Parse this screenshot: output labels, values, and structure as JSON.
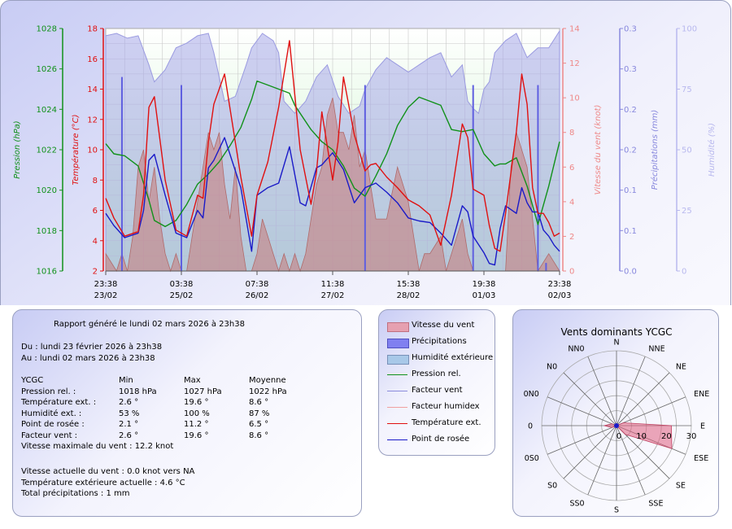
{
  "chart_data": {
    "type": "line",
    "x_ticks": [
      {
        "time": "23:38",
        "date": "23/02"
      },
      {
        "time": "03:38",
        "date": "25/02"
      },
      {
        "time": "07:38",
        "date": "26/02"
      },
      {
        "time": "11:38",
        "date": "27/02"
      },
      {
        "time": "15:38",
        "date": "28/02"
      },
      {
        "time": "19:38",
        "date": "01/03"
      },
      {
        "time": "23:38",
        "date": "02/03"
      }
    ],
    "x_range_hours": [
      0,
      168
    ],
    "axes": {
      "pressure": {
        "label": "Pression (hPa)",
        "min": 1016,
        "max": 1028,
        "ticks": [
          "1016",
          "1018",
          "1020",
          "1022",
          "1024",
          "1026",
          "1028"
        ],
        "color": "#11911a"
      },
      "temperature": {
        "label": "Température (°C)",
        "min": 2,
        "max": 18,
        "ticks": [
          "2",
          "4",
          "6",
          "8",
          "10",
          "12",
          "14",
          "16",
          "18"
        ],
        "color": "#e01010"
      },
      "wind": {
        "label": "Vitesse du vent (knot)",
        "min": 0,
        "max": 14,
        "ticks": [
          "0",
          "2",
          "4",
          "6",
          "8",
          "10",
          "12",
          "14"
        ],
        "color": "#ee8888"
      },
      "precip": {
        "label": "Précipitations (mm)",
        "min": 0,
        "max": 0.3,
        "ticks": [
          "0.0",
          "0.1",
          "0.1",
          "0.2",
          "0.2",
          "0.3",
          "0.3"
        ],
        "color": "#8888dd"
      },
      "humidity": {
        "label": "Humidité (%)",
        "min": 0,
        "max": 100,
        "ticks": [
          "0",
          "25",
          "50",
          "75",
          "100"
        ],
        "color": "#b8b8ee"
      }
    },
    "series": [
      {
        "name": "Température ext.",
        "axis": "temperature",
        "color": "#e01010",
        "x": [
          0,
          3,
          7,
          12,
          14,
          16,
          18,
          22,
          26,
          30,
          34,
          36,
          38,
          40,
          44,
          50,
          54,
          56,
          60,
          64,
          68,
          72,
          76,
          78,
          80,
          84,
          86,
          88,
          92,
          96,
          98,
          100,
          104,
          108,
          112,
          116,
          120,
          124,
          128,
          132,
          134,
          136,
          140,
          142,
          144,
          146,
          148,
          152,
          154,
          156,
          158,
          160,
          162,
          164,
          166,
          168
        ],
        "values": [
          6.8,
          5.5,
          4.3,
          4.6,
          7,
          12.8,
          13.5,
          8,
          4.7,
          4.3,
          7,
          6.8,
          10.5,
          13,
          15,
          8.2,
          4.3,
          7,
          9.2,
          12.8,
          17.2,
          10,
          6.4,
          8.5,
          12.5,
          8,
          10.5,
          14.8,
          11,
          8.6,
          9,
          9.1,
          8.2,
          7.5,
          6.7,
          6.3,
          5.7,
          3.7,
          7,
          11.7,
          10.8,
          7.4,
          7,
          5,
          3.5,
          3.3,
          5.8,
          11.2,
          15,
          13,
          7.5,
          5.8,
          5.8,
          5.2,
          4.3,
          4.5
        ]
      },
      {
        "name": "Point de rosée",
        "axis": "temperature",
        "color": "#1a1ac8",
        "x": [
          0,
          3,
          7,
          12,
          14,
          16,
          18,
          22,
          26,
          30,
          34,
          36,
          38,
          40,
          44,
          50,
          54,
          56,
          60,
          64,
          68,
          72,
          74,
          78,
          80,
          84,
          88,
          92,
          96,
          100,
          104,
          108,
          112,
          116,
          120,
          124,
          128,
          132,
          134,
          136,
          140,
          142,
          144,
          146,
          148,
          152,
          154,
          156,
          158,
          160,
          162,
          164,
          166,
          168
        ],
        "values": [
          5.8,
          5,
          4.2,
          4.5,
          6,
          9.3,
          9.7,
          7,
          4.5,
          4.2,
          6,
          5.5,
          8.8,
          9.3,
          10.8,
          7.5,
          3.3,
          7,
          7.5,
          7.8,
          10.2,
          6.5,
          6.3,
          8.8,
          9,
          9.8,
          8.7,
          6.5,
          7.5,
          7.8,
          7.2,
          6.5,
          5.5,
          5.3,
          5.2,
          4.5,
          3.7,
          6.3,
          5.9,
          4.3,
          3.2,
          2.5,
          2.4,
          4.8,
          6.3,
          5.8,
          7.5,
          6.5,
          5.9,
          5.9,
          4.7,
          4.3,
          3.7,
          3.3
        ]
      },
      {
        "name": "Pression rel.",
        "axis": "pressure",
        "color": "#11911a",
        "x": [
          0,
          3,
          7,
          12,
          16,
          18,
          22,
          26,
          30,
          34,
          38,
          42,
          46,
          50,
          54,
          56,
          60,
          64,
          68,
          70,
          72,
          76,
          80,
          84,
          88,
          92,
          96,
          100,
          104,
          108,
          112,
          116,
          120,
          124,
          128,
          132,
          136,
          140,
          144,
          146,
          148,
          152,
          156,
          160,
          164,
          168
        ],
        "values": [
          1022.3,
          1021.8,
          1021.7,
          1021.2,
          1019.5,
          1018.5,
          1018.2,
          1018.5,
          1019.3,
          1020.3,
          1020.8,
          1021.4,
          1022.2,
          1023.1,
          1024.5,
          1025.4,
          1025.2,
          1025,
          1024.8,
          1024.2,
          1023.8,
          1023,
          1022.4,
          1022,
          1021.2,
          1020.1,
          1019.7,
          1020.7,
          1021.8,
          1023.2,
          1024.1,
          1024.6,
          1024.4,
          1024.2,
          1023,
          1022.9,
          1023,
          1021.8,
          1021.2,
          1021.3,
          1021.3,
          1021.6,
          1020.2,
          1018.3,
          1020.2,
          1022.4
        ]
      },
      {
        "name": "Humidité extérieure",
        "axis": "humidity",
        "color": "#b8b8ee",
        "x": [
          0,
          4,
          8,
          12,
          16,
          18,
          22,
          26,
          30,
          34,
          38,
          40,
          44,
          48,
          52,
          54,
          58,
          62,
          64,
          66,
          70,
          74,
          78,
          82,
          86,
          90,
          94,
          96,
          100,
          104,
          108,
          112,
          116,
          120,
          124,
          128,
          132,
          134,
          136,
          138,
          140,
          142,
          144,
          148,
          152,
          156,
          160,
          164,
          168
        ],
        "values": [
          97,
          98,
          96,
          97,
          85,
          78,
          83,
          92,
          94,
          97,
          98,
          90,
          70,
          72,
          85,
          92,
          98,
          95,
          90,
          70,
          65,
          70,
          80,
          85,
          72,
          65,
          68,
          75,
          83,
          88,
          85,
          82,
          85,
          88,
          90,
          80,
          85,
          70,
          67,
          65,
          75,
          78,
          90,
          95,
          98,
          88,
          92,
          92,
          99
        ]
      },
      {
        "name": "Vitesse du vent",
        "axis": "wind",
        "color": "#c88080",
        "x": [
          0,
          4,
          6,
          8,
          10,
          12,
          14,
          16,
          18,
          20,
          22,
          24,
          26,
          28,
          30,
          34,
          36,
          38,
          40,
          42,
          44,
          46,
          48,
          50,
          52,
          54,
          56,
          58,
          60,
          62,
          64,
          66,
          68,
          70,
          72,
          74,
          76,
          78,
          80,
          82,
          84,
          86,
          88,
          90,
          92,
          94,
          96,
          98,
          100,
          104,
          108,
          112,
          114,
          116,
          118,
          120,
          124,
          126,
          128,
          130,
          132,
          134,
          136,
          140,
          144,
          148,
          150,
          152,
          154,
          156,
          158,
          160,
          164,
          168
        ],
        "values": [
          1,
          0,
          1,
          0,
          2,
          6,
          7,
          4,
          6,
          3,
          1,
          0,
          1,
          0,
          0,
          4,
          6,
          8,
          7,
          8,
          5,
          3,
          6,
          2,
          0,
          0,
          1,
          3,
          2,
          1,
          0,
          1,
          0,
          1,
          0,
          1,
          3,
          5,
          6,
          9,
          10,
          8,
          8,
          7,
          9,
          6,
          7,
          5,
          3,
          3,
          6,
          4,
          2,
          0,
          1,
          1,
          2,
          0,
          1,
          2,
          3,
          1,
          0,
          0,
          0,
          0,
          6,
          8,
          7,
          6,
          3,
          0,
          1,
          0
        ]
      },
      {
        "name": "Précipitations",
        "axis": "precip",
        "color": "#5f5fe0",
        "x": [
          6,
          28,
          96,
          136,
          160,
          163
        ],
        "values": [
          0.24,
          0.23,
          0.23,
          0.23,
          0.23,
          0.01
        ]
      }
    ]
  },
  "legend": {
    "items": [
      {
        "label": "Vitesse du vent",
        "color": "#e6a0b0",
        "kind": "box"
      },
      {
        "label": "Précipitations",
        "color": "#8080f0",
        "kind": "box"
      },
      {
        "label": "Humidité extérieure",
        "color": "#a8c8e8",
        "kind": "box"
      },
      {
        "label": "Pression rel.",
        "color": "#11911a",
        "kind": "line"
      },
      {
        "label": "Facteur vent",
        "color": "#8c8cdc",
        "kind": "line"
      },
      {
        "label": "Facteur humidex",
        "color": "#f0a0a0",
        "kind": "line"
      },
      {
        "label": "Température ext.",
        "color": "#e01010",
        "kind": "line"
      },
      {
        "label": "Point de rosée",
        "color": "#1a1ac8",
        "kind": "line"
      }
    ]
  },
  "report": {
    "generated": "Rapport généré le lundi 02 mars 2026 à 23h38",
    "from": "Du : lundi 23 février 2026 à 23h38",
    "to": "Au : lundi 02 mars 2026 à 23h38",
    "header": {
      "station": "YCGC",
      "min": "Min",
      "max": "Max",
      "avg": "Moyenne"
    },
    "rows": [
      {
        "label": "Pression rel. :",
        "min": "1018 hPa",
        "max": "1027 hPa",
        "avg": "1022 hPa"
      },
      {
        "label": "Température ext. :",
        "min": "2.6 °",
        "max": "19.6 °",
        "avg": "8.6 °"
      },
      {
        "label": "Humidité ext. :",
        "min": "53 %",
        "max": "100 %",
        "avg": "87 %"
      },
      {
        "label": "Point de rosée :",
        "min": "2.1 °",
        "max": "11.2 °",
        "avg": "6.5 °"
      },
      {
        "label": "Facteur vent :",
        "min": "2.6 °",
        "max": "19.6 °",
        "avg": "8.6 °"
      }
    ],
    "max_wind": "Vitesse maximale du vent : 12.2 knot",
    "current_wind": "Vitesse actuelle du vent : 0.0 knot vers  NA",
    "current_temp": "Température extérieure actuelle :  4.6 °C",
    "total_precip": "Total précipitations :  1 mm"
  },
  "windrose": {
    "title": "Vents dominants YCGC",
    "directions": [
      "N",
      "NNE",
      "NE",
      "ENE",
      "E",
      "ESE",
      "SE",
      "SSE",
      "S",
      "SS0",
      "S0",
      "0S0",
      "0",
      "0N0",
      "N0",
      "NN0"
    ],
    "rings": [
      "0",
      "10",
      "20",
      "30"
    ],
    "ring_max": 30,
    "values": [
      0,
      0,
      0,
      3,
      22,
      24,
      5,
      0,
      0,
      0,
      0,
      2,
      5,
      2,
      0,
      0
    ],
    "fill": "#e06080"
  }
}
